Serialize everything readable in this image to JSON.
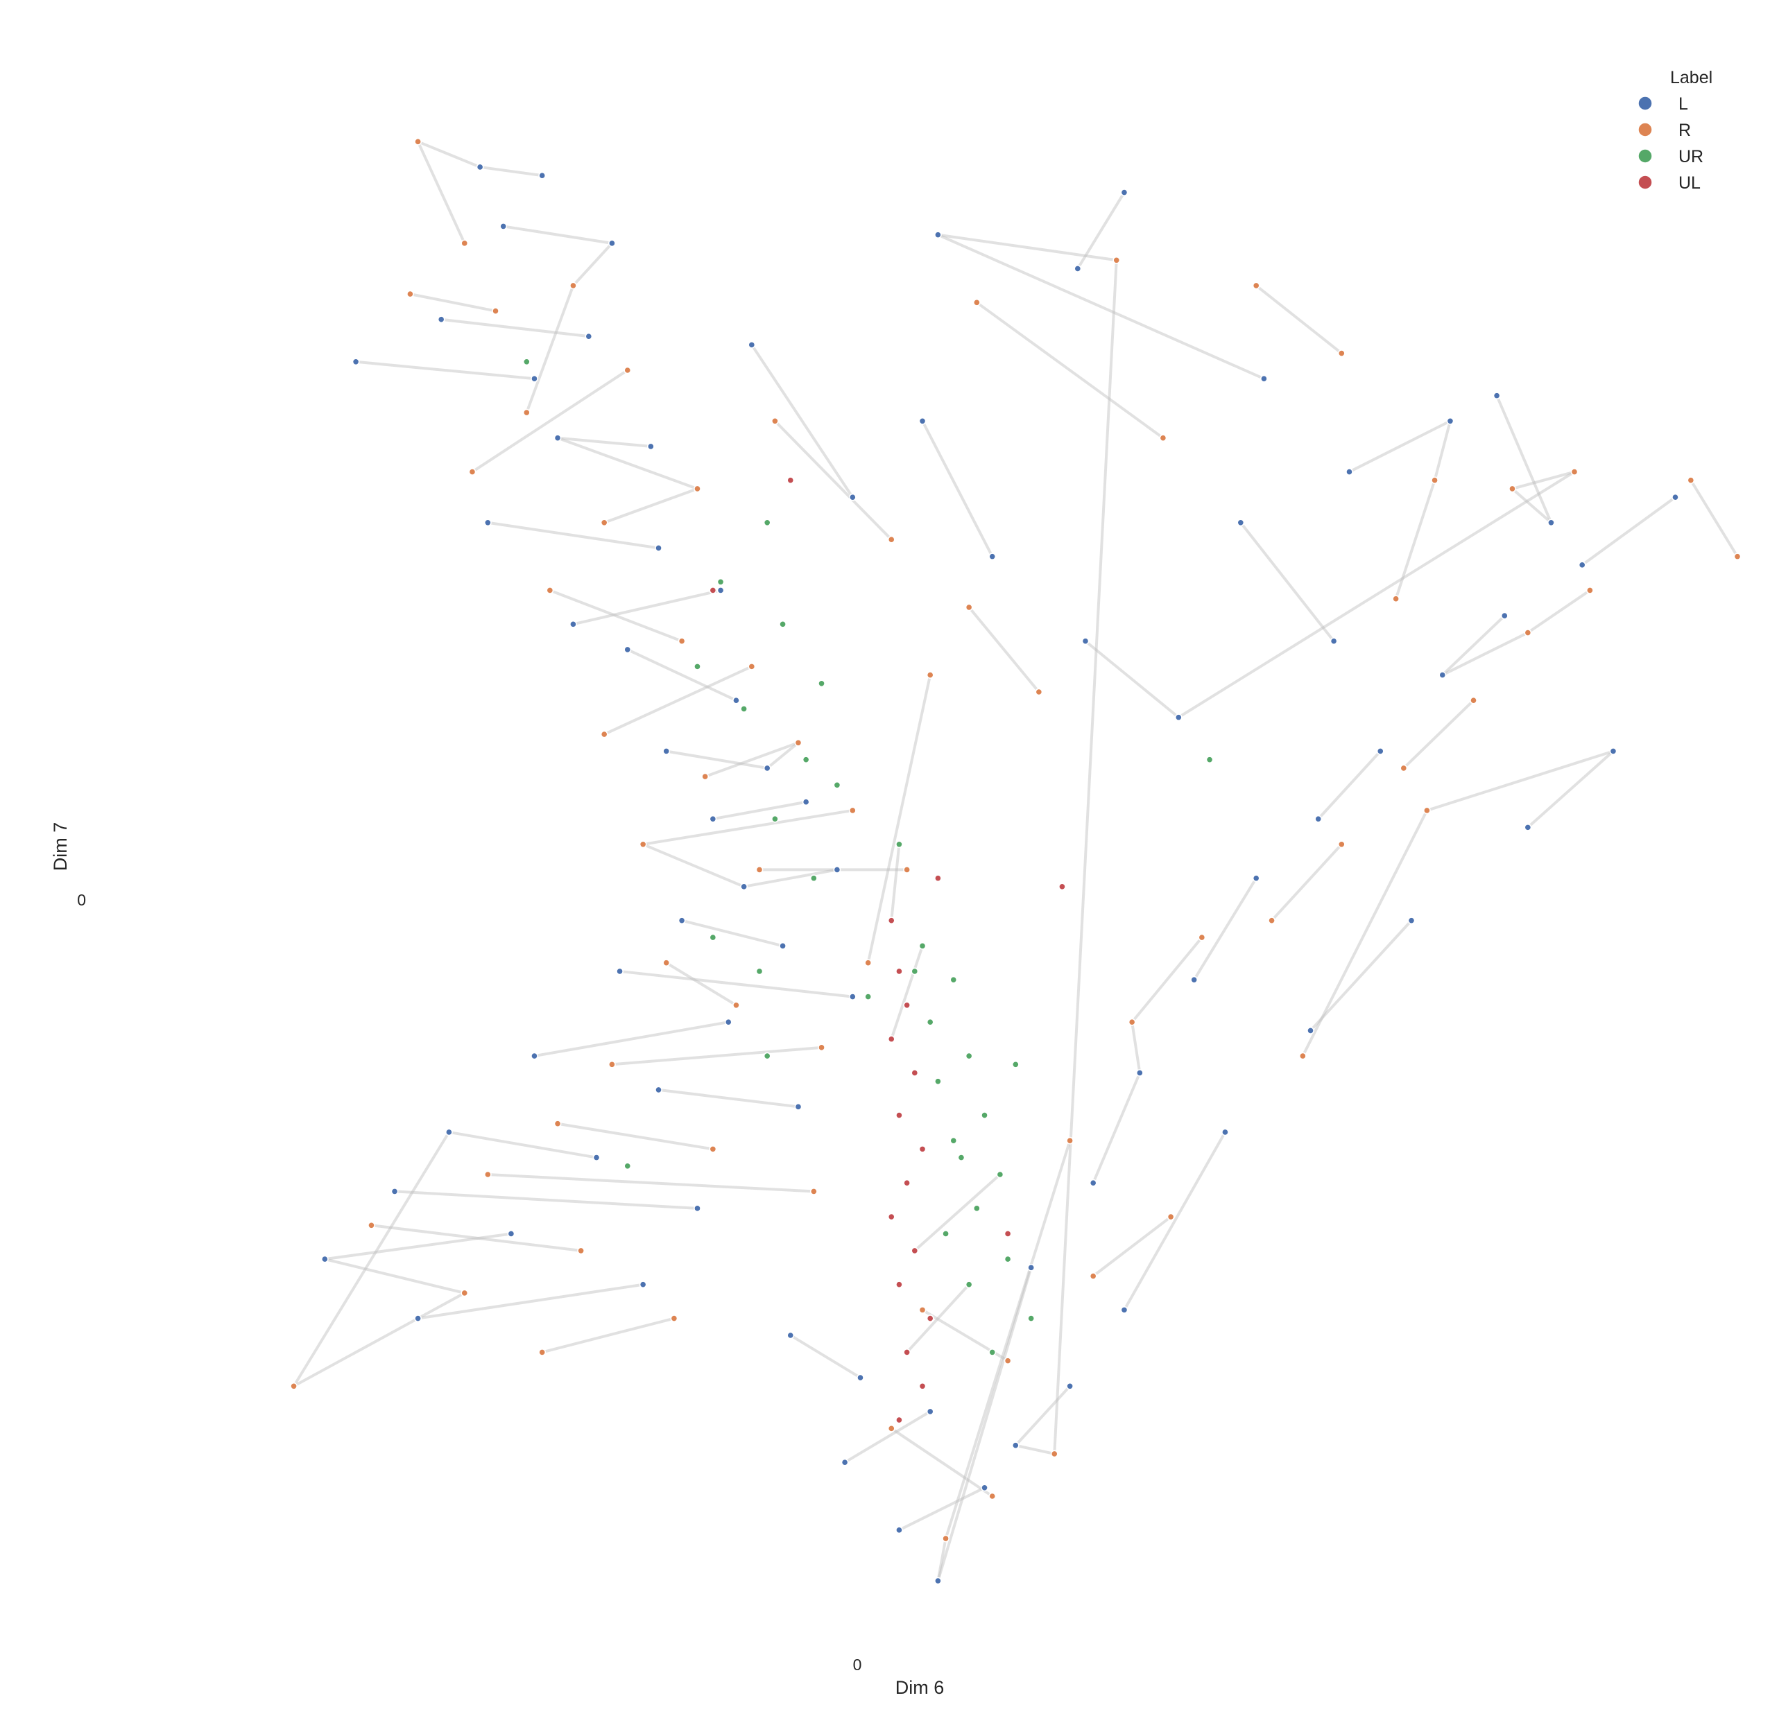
{
  "chart_data": {
    "type": "scatter",
    "title": "",
    "xlabel": "Dim 6",
    "ylabel": "Dim 7",
    "x_ticks": [
      "0"
    ],
    "y_ticks": [
      "0"
    ],
    "xlim": [
      -10,
      11
    ],
    "ylim": [
      -9,
      10
    ],
    "grid": false,
    "legend_title": "Label",
    "legend_position": "top-right",
    "links_shown": true,
    "series": [
      {
        "name": "L",
        "color": "#4c72b0",
        "points": [
          [
            -5.2,
            8.6
          ],
          [
            -4.4,
            8.5
          ],
          [
            -4.9,
            7.9
          ],
          [
            -3.5,
            7.7
          ],
          [
            -5.7,
            6.8
          ],
          [
            -3.8,
            6.6
          ],
          [
            -4.5,
            6.1
          ],
          [
            -6.8,
            6.3
          ],
          [
            -4.2,
            5.4
          ],
          [
            -3.0,
            5.3
          ],
          [
            -5.1,
            4.4
          ],
          [
            -2.9,
            4.1
          ],
          [
            -4.0,
            3.2
          ],
          [
            -2.1,
            3.6
          ],
          [
            -3.3,
            2.9
          ],
          [
            -1.9,
            2.3
          ],
          [
            -2.8,
            1.7
          ],
          [
            -1.5,
            1.5
          ],
          [
            -2.2,
            0.9
          ],
          [
            -1.0,
            1.1
          ],
          [
            -0.6,
            0.3
          ],
          [
            -1.8,
            0.1
          ],
          [
            -2.6,
            -0.3
          ],
          [
            -1.3,
            -0.6
          ],
          [
            -3.4,
            -0.9
          ],
          [
            -0.4,
            -1.2
          ],
          [
            -2.0,
            -1.5
          ],
          [
            -4.5,
            -1.9
          ],
          [
            -2.9,
            -2.3
          ],
          [
            -1.1,
            -2.5
          ],
          [
            -5.6,
            -2.8
          ],
          [
            -3.7,
            -3.1
          ],
          [
            -6.3,
            -3.5
          ],
          [
            -2.4,
            -3.7
          ],
          [
            -4.8,
            -4.0
          ],
          [
            -7.2,
            -4.3
          ],
          [
            -3.1,
            -4.6
          ],
          [
            -6.0,
            -5.0
          ],
          [
            -1.2,
            -5.2
          ],
          [
            -0.3,
            -5.7
          ],
          [
            0.6,
            -6.1
          ],
          [
            -0.5,
            -6.7
          ],
          [
            1.3,
            -7.0
          ],
          [
            0.2,
            -7.5
          ],
          [
            0.7,
            -8.1
          ],
          [
            1.9,
            -4.4
          ],
          [
            2.7,
            -3.4
          ],
          [
            3.3,
            -2.1
          ],
          [
            4.0,
            -1.0
          ],
          [
            4.8,
            0.2
          ],
          [
            5.6,
            0.9
          ],
          [
            6.4,
            1.7
          ],
          [
            7.2,
            2.6
          ],
          [
            8.0,
            3.3
          ],
          [
            9.0,
            3.9
          ],
          [
            10.2,
            4.7
          ],
          [
            9.4,
            1.7
          ],
          [
            8.3,
            0.8
          ],
          [
            6.8,
            -0.3
          ],
          [
            5.5,
            -1.6
          ],
          [
            4.4,
            -2.8
          ],
          [
            3.1,
            -4.9
          ],
          [
            2.4,
            -5.8
          ],
          [
            1.7,
            -6.5
          ],
          [
            2.5,
            7.4
          ],
          [
            3.1,
            8.3
          ],
          [
            0.7,
            7.8
          ],
          [
            4.9,
            6.1
          ],
          [
            6.0,
            5.0
          ],
          [
            7.3,
            5.6
          ],
          [
            -1.7,
            6.5
          ],
          [
            -0.4,
            4.7
          ],
          [
            0.5,
            5.6
          ],
          [
            1.4,
            4.0
          ],
          [
            2.6,
            3.0
          ],
          [
            3.8,
            2.1
          ],
          [
            4.6,
            4.4
          ],
          [
            5.8,
            3.0
          ],
          [
            7.9,
            5.9
          ],
          [
            8.6,
            4.4
          ]
        ]
      },
      {
        "name": "R",
        "color": "#dd8452",
        "points": [
          [
            -6.0,
            8.9
          ],
          [
            -5.4,
            7.7
          ],
          [
            -6.1,
            7.1
          ],
          [
            -5.0,
            6.9
          ],
          [
            -4.0,
            7.2
          ],
          [
            -4.6,
            5.7
          ],
          [
            -3.3,
            6.2
          ],
          [
            -5.3,
            5.0
          ],
          [
            -3.6,
            4.4
          ],
          [
            -2.4,
            4.8
          ],
          [
            -4.3,
            3.6
          ],
          [
            -2.6,
            3.0
          ],
          [
            -1.7,
            2.7
          ],
          [
            -3.6,
            1.9
          ],
          [
            -2.3,
            1.4
          ],
          [
            -1.1,
            1.8
          ],
          [
            -0.4,
            1.0
          ],
          [
            -3.1,
            0.6
          ],
          [
            -1.6,
            0.3
          ],
          [
            0.3,
            0.3
          ],
          [
            -2.8,
            -0.8
          ],
          [
            -1.9,
            -1.3
          ],
          [
            -0.8,
            -1.8
          ],
          [
            -3.5,
            -2.0
          ],
          [
            -4.2,
            -2.7
          ],
          [
            -2.2,
            -3.0
          ],
          [
            -5.1,
            -3.3
          ],
          [
            -0.9,
            -3.5
          ],
          [
            -3.9,
            -4.2
          ],
          [
            -6.6,
            -3.9
          ],
          [
            -5.4,
            -4.7
          ],
          [
            -7.6,
            -5.8
          ],
          [
            -4.4,
            -5.4
          ],
          [
            -2.7,
            -5.0
          ],
          [
            0.5,
            -4.9
          ],
          [
            1.6,
            -5.5
          ],
          [
            0.1,
            -6.3
          ],
          [
            1.4,
            -7.1
          ],
          [
            0.8,
            -7.6
          ],
          [
            2.4,
            -2.9
          ],
          [
            3.2,
            -1.5
          ],
          [
            4.1,
            -0.5
          ],
          [
            5.0,
            -0.3
          ],
          [
            5.9,
            0.6
          ],
          [
            6.7,
            1.5
          ],
          [
            7.6,
            2.3
          ],
          [
            8.3,
            3.1
          ],
          [
            9.1,
            3.6
          ],
          [
            10.4,
            4.9
          ],
          [
            11.0,
            4.0
          ],
          [
            7.0,
            1.0
          ],
          [
            5.4,
            -1.9
          ],
          [
            3.7,
            -3.8
          ],
          [
            2.7,
            -4.5
          ],
          [
            2.2,
            -6.6
          ],
          [
            3.0,
            7.5
          ],
          [
            1.2,
            7.0
          ],
          [
            3.6,
            5.4
          ],
          [
            4.8,
            7.2
          ],
          [
            5.9,
            6.4
          ],
          [
            7.1,
            4.9
          ],
          [
            6.6,
            3.5
          ],
          [
            8.1,
            4.8
          ],
          [
            8.9,
            5.0
          ],
          [
            -1.4,
            5.6
          ],
          [
            0.1,
            4.2
          ],
          [
            1.1,
            3.4
          ],
          [
            2.0,
            2.4
          ],
          [
            0.6,
            2.6
          ],
          [
            -0.2,
            -0.8
          ]
        ]
      },
      {
        "name": "UR",
        "color": "#55a868",
        "points": [
          [
            -1.5,
            4.4
          ],
          [
            -2.1,
            3.7
          ],
          [
            -1.3,
            3.2
          ],
          [
            -2.4,
            2.7
          ],
          [
            -0.8,
            2.5
          ],
          [
            -1.8,
            2.2
          ],
          [
            -1.0,
            1.6
          ],
          [
            -0.6,
            1.3
          ],
          [
            -1.4,
            0.9
          ],
          [
            0.2,
            0.6
          ],
          [
            -0.9,
            0.2
          ],
          [
            -2.2,
            -0.5
          ],
          [
            -1.6,
            -0.9
          ],
          [
            0.5,
            -0.6
          ],
          [
            0.9,
            -1.0
          ],
          [
            0.6,
            -1.5
          ],
          [
            1.1,
            -1.9
          ],
          [
            0.7,
            -2.2
          ],
          [
            1.3,
            -2.6
          ],
          [
            0.9,
            -2.9
          ],
          [
            1.5,
            -3.3
          ],
          [
            1.2,
            -3.7
          ],
          [
            0.8,
            -4.0
          ],
          [
            1.6,
            -4.3
          ],
          [
            1.1,
            -4.6
          ],
          [
            1.9,
            -5.0
          ],
          [
            1.4,
            -5.4
          ],
          [
            -3.3,
            -3.2
          ],
          [
            -1.5,
            -1.9
          ],
          [
            -0.2,
            -1.2
          ],
          [
            -4.6,
            6.3
          ],
          [
            4.2,
            1.6
          ],
          [
            0.4,
            -0.9
          ],
          [
            1.7,
            -2.0
          ],
          [
            1.0,
            -3.1
          ]
        ]
      },
      {
        "name": "UL",
        "color": "#c44e52",
        "points": [
          [
            0.1,
            -0.3
          ],
          [
            0.2,
            -0.9
          ],
          [
            0.3,
            -1.3
          ],
          [
            0.1,
            -1.7
          ],
          [
            0.4,
            -2.1
          ],
          [
            0.2,
            -2.6
          ],
          [
            0.5,
            -3.0
          ],
          [
            0.3,
            -3.4
          ],
          [
            0.1,
            -3.8
          ],
          [
            0.4,
            -4.2
          ],
          [
            0.2,
            -4.6
          ],
          [
            0.6,
            -5.0
          ],
          [
            0.3,
            -5.4
          ],
          [
            0.5,
            -5.8
          ],
          [
            0.2,
            -6.2
          ],
          [
            -1.2,
            4.9
          ],
          [
            -2.2,
            3.6
          ],
          [
            0.7,
            0.2
          ],
          [
            1.6,
            -4.0
          ],
          [
            2.3,
            0.1
          ]
        ]
      }
    ],
    "links": [
      [
        0,
        0,
        0,
        1
      ],
      [
        0,
        2,
        0,
        3
      ],
      [
        0,
        4,
        0,
        5
      ],
      [
        0,
        6,
        0,
        7
      ],
      [
        0,
        8,
        0,
        9
      ],
      [
        0,
        10,
        0,
        11
      ],
      [
        0,
        12,
        0,
        13
      ],
      [
        0,
        14,
        0,
        15
      ],
      [
        0,
        16,
        0,
        17
      ],
      [
        0,
        18,
        0,
        19
      ],
      [
        0,
        20,
        0,
        21
      ],
      [
        0,
        22,
        0,
        23
      ],
      [
        0,
        24,
        0,
        25
      ],
      [
        0,
        26,
        0,
        27
      ],
      [
        0,
        28,
        0,
        29
      ],
      [
        0,
        30,
        0,
        31
      ],
      [
        0,
        32,
        0,
        33
      ],
      [
        0,
        34,
        0,
        35
      ],
      [
        0,
        36,
        0,
        37
      ],
      [
        0,
        38,
        0,
        39
      ],
      [
        0,
        40,
        0,
        41
      ],
      [
        0,
        42,
        0,
        43
      ],
      [
        0,
        44,
        0,
        45
      ],
      [
        0,
        46,
        0,
        47
      ],
      [
        0,
        48,
        0,
        49
      ],
      [
        0,
        50,
        0,
        51
      ],
      [
        0,
        52,
        0,
        53
      ],
      [
        0,
        54,
        0,
        55
      ],
      [
        0,
        56,
        0,
        57
      ],
      [
        0,
        58,
        0,
        59
      ],
      [
        0,
        60,
        0,
        61
      ],
      [
        0,
        62,
        0,
        63
      ],
      [
        0,
        64,
        0,
        65
      ],
      [
        0,
        66,
        0,
        67
      ],
      [
        0,
        68,
        0,
        69
      ],
      [
        0,
        70,
        0,
        71
      ],
      [
        0,
        72,
        0,
        73
      ],
      [
        0,
        74,
        0,
        75
      ],
      [
        0,
        76,
        0,
        77
      ],
      [
        0,
        78,
        0,
        79
      ],
      [
        1,
        0,
        1,
        1
      ],
      [
        1,
        2,
        1,
        3
      ],
      [
        1,
        4,
        1,
        5
      ],
      [
        1,
        6,
        1,
        7
      ],
      [
        1,
        8,
        1,
        9
      ],
      [
        1,
        10,
        1,
        11
      ],
      [
        1,
        12,
        1,
        13
      ],
      [
        1,
        14,
        1,
        15
      ],
      [
        1,
        16,
        1,
        17
      ],
      [
        1,
        18,
        1,
        19
      ],
      [
        1,
        20,
        1,
        21
      ],
      [
        1,
        22,
        1,
        23
      ],
      [
        1,
        24,
        1,
        25
      ],
      [
        1,
        26,
        1,
        27
      ],
      [
        1,
        28,
        1,
        29
      ],
      [
        1,
        30,
        1,
        31
      ],
      [
        1,
        32,
        1,
        33
      ],
      [
        1,
        34,
        1,
        35
      ],
      [
        1,
        36,
        1,
        37
      ],
      [
        1,
        38,
        1,
        39
      ],
      [
        1,
        40,
        1,
        41
      ],
      [
        1,
        42,
        1,
        43
      ],
      [
        1,
        44,
        1,
        45
      ],
      [
        1,
        46,
        1,
        47
      ],
      [
        1,
        48,
        1,
        49
      ],
      [
        1,
        50,
        1,
        51
      ],
      [
        1,
        52,
        1,
        53
      ],
      [
        1,
        54,
        1,
        55
      ],
      [
        1,
        56,
        1,
        57
      ],
      [
        1,
        58,
        1,
        59
      ],
      [
        1,
        60,
        1,
        61
      ],
      [
        1,
        62,
        1,
        63
      ],
      [
        1,
        64,
        1,
        65
      ],
      [
        1,
        66,
        1,
        67
      ],
      [
        1,
        68,
        1,
        69
      ],
      [
        0,
        0,
        1,
        0
      ],
      [
        0,
        3,
        1,
        4
      ],
      [
        0,
        8,
        1,
        9
      ],
      [
        0,
        17,
        1,
        15
      ],
      [
        0,
        21,
        1,
        17
      ],
      [
        0,
        30,
        1,
        31
      ],
      [
        0,
        35,
        1,
        30
      ],
      [
        0,
        44,
        1,
        38
      ],
      [
        0,
        47,
        1,
        40
      ],
      [
        0,
        52,
        1,
        46
      ],
      [
        0,
        56,
        1,
        50
      ],
      [
        0,
        63,
        1,
        54
      ],
      [
        0,
        66,
        1,
        55
      ],
      [
        0,
        69,
        1,
        60
      ],
      [
        0,
        75,
        1,
        63
      ],
      [
        0,
        79,
        1,
        62
      ],
      [
        2,
        9,
        3,
        0
      ],
      [
        2,
        13,
        3,
        3
      ],
      [
        2,
        20,
        3,
        9
      ],
      [
        2,
        24,
        3,
        12
      ]
    ]
  },
  "colors": {
    "L": "#4c72b0",
    "R": "#dd8452",
    "UR": "#55a868",
    "UL": "#c44e52",
    "link": "#bdbdbd"
  }
}
